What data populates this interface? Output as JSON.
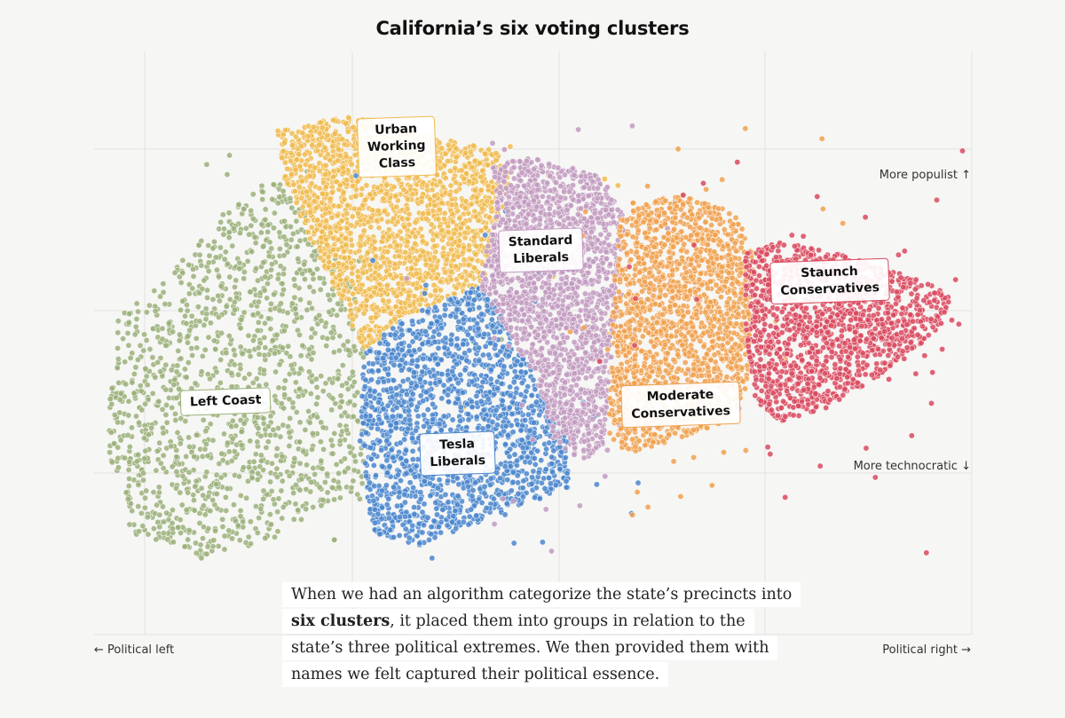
{
  "chart_data": {
    "type": "scatter",
    "title": "California’s six voting clusters",
    "x_axis": {
      "left_label": "Political left",
      "right_label": "Political right",
      "left_icon": "arrow-left-icon",
      "right_icon": "arrow-right-icon"
    },
    "y_axis": {
      "top_label": "More populist",
      "bottom_label": "More technocratic",
      "top_icon": "arrow-up-icon",
      "bottom_icon": "arrow-down-icon"
    },
    "grid": true,
    "clusters": [
      {
        "name": "Left Coast",
        "color": "#9bb07a"
      },
      {
        "name": "Urban\nWorking\nClass",
        "color": "#f0bb4f"
      },
      {
        "name": "Tesla\nLiberals",
        "color": "#4a86cc"
      },
      {
        "name": "Standard\nLiberals",
        "color": "#c29bc0"
      },
      {
        "name": "Moderate\nConservatives",
        "color": "#f0a14f"
      },
      {
        "name": "Staunch\nConservatives",
        "color": "#d9495e"
      }
    ]
  },
  "caption": {
    "before": "When we had an algorithm categorize the state’s precincts into",
    "bold": "six clusters",
    "after_line2": ", it placed them into groups in relation to the",
    "line3": "state’s three political extremes. We then provided them with",
    "line4": "names we felt captured their political essence."
  }
}
